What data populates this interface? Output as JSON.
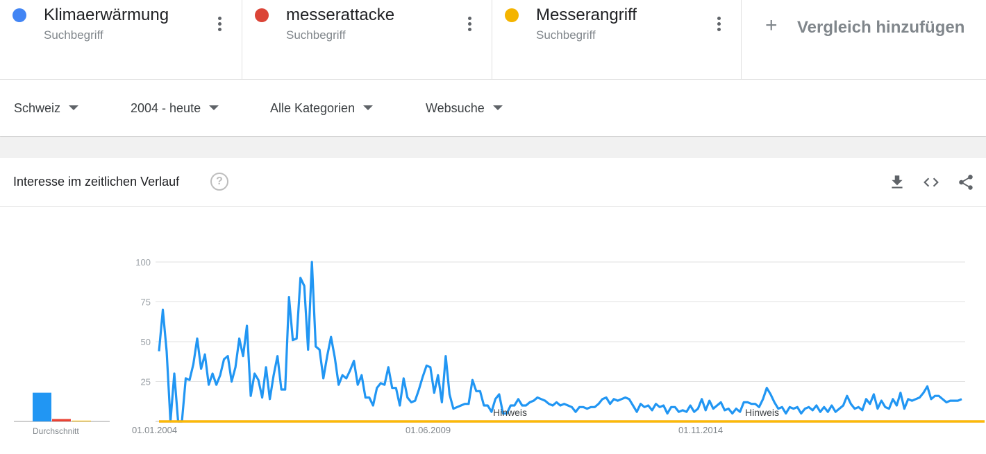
{
  "terms": [
    {
      "name": "Klimaerwärmung",
      "type": "Suchbegriff",
      "color": "#4285f4"
    },
    {
      "name": "messerattacke",
      "type": "Suchbegriff",
      "color": "#db4437"
    },
    {
      "name": "Messerangriff",
      "type": "Suchbegriff",
      "color": "#f4b400"
    }
  ],
  "add_compare": {
    "label": "Vergleich hinzufügen",
    "icon": "plus-icon"
  },
  "filters": {
    "region": "Schweiz",
    "timeframe": "2004 - heute",
    "category": "Alle Kategorien",
    "property": "Websuche"
  },
  "card": {
    "title": "Interesse im zeitlichen Verlauf",
    "icons": [
      "help-icon",
      "download-icon",
      "embed-icon",
      "share-icon"
    ]
  },
  "chart_data": {
    "type": "line",
    "ylim": [
      0,
      100
    ],
    "yticks": [
      "25",
      "50",
      "75",
      "100"
    ],
    "xtick_labels": [
      "01.01.2004",
      "01.06.2009",
      "01.11.2014"
    ],
    "notes": [
      "Hinweis",
      "Hinweis"
    ],
    "average_label": "Durchschnitt",
    "averages": [
      18,
      1.5,
      0.5
    ],
    "series": [
      {
        "name": "Klimaerwärmung",
        "color": "#2196f3",
        "values": [
          44,
          70,
          44,
          0,
          30,
          0,
          0,
          27,
          26,
          36,
          52,
          33,
          42,
          23,
          30,
          23,
          29,
          39,
          41,
          25,
          34,
          52,
          41,
          60,
          16,
          30,
          26,
          15,
          34,
          14,
          29,
          41,
          20,
          20,
          78,
          51,
          52,
          90,
          85,
          45,
          100,
          47,
          45,
          27,
          41,
          53,
          40,
          23,
          29,
          27,
          32,
          38,
          23,
          29,
          15,
          15,
          10,
          21,
          24,
          23,
          34,
          21,
          21,
          10,
          27,
          15,
          12,
          13,
          20,
          28,
          35,
          34,
          18,
          29,
          12,
          41,
          17,
          8,
          9,
          10,
          11,
          11,
          26,
          19,
          19,
          10,
          10,
          6,
          14,
          17,
          5,
          5,
          10,
          10,
          14,
          10,
          10,
          12,
          13,
          15,
          14,
          13,
          11,
          10,
          12,
          10,
          11,
          10,
          9,
          6,
          9,
          9,
          8,
          9,
          9,
          11,
          14,
          15,
          11,
          14,
          13,
          14,
          15,
          14,
          10,
          6,
          11,
          9,
          10,
          7,
          11,
          9,
          10,
          5,
          9,
          9,
          6,
          7,
          6,
          10,
          6,
          8,
          14,
          7,
          13,
          8,
          10,
          12,
          7,
          8,
          5,
          8,
          6,
          12,
          12,
          11,
          11,
          9,
          14,
          21,
          17,
          12,
          8,
          9,
          5,
          9,
          8,
          9,
          5,
          8,
          9,
          7,
          10,
          6,
          9,
          6,
          10,
          6,
          8,
          10,
          16,
          11,
          8,
          9,
          7,
          14,
          11,
          17,
          8,
          13,
          9,
          8,
          14,
          10,
          18,
          8,
          14,
          13,
          14,
          15,
          18,
          22,
          14,
          16,
          16,
          14,
          12,
          13,
          13,
          13,
          14
        ]
      },
      {
        "name": "messerattacke",
        "color": "#ea4335",
        "values": [
          0,
          0,
          0,
          0,
          0,
          0,
          0,
          0,
          0,
          0,
          0,
          0,
          0,
          0,
          0,
          0,
          0,
          0,
          0,
          0,
          0,
          0,
          0,
          0,
          0,
          0,
          0,
          0,
          0,
          0,
          0,
          0,
          0,
          0,
          0,
          0,
          0,
          0,
          0,
          0,
          0,
          0,
          0,
          0,
          0,
          0,
          0,
          0,
          0,
          0,
          0,
          0,
          0,
          0,
          0,
          0,
          0,
          0,
          0,
          0,
          0,
          0,
          0,
          0,
          0,
          0,
          0,
          0,
          0,
          0,
          0,
          0,
          0,
          0,
          0,
          0,
          0,
          0,
          0,
          0,
          0,
          0,
          0,
          0,
          0,
          0,
          0,
          0,
          0,
          0,
          0,
          0,
          0,
          0,
          0,
          0,
          0,
          0,
          0,
          0,
          0,
          0,
          0,
          0,
          0,
          0,
          0,
          0,
          0,
          0,
          0,
          0,
          0,
          0,
          0,
          0,
          0,
          0,
          0,
          0,
          0,
          0,
          0,
          0,
          0,
          0,
          0,
          0,
          0,
          0,
          0,
          0,
          0,
          0,
          0,
          0,
          0,
          0,
          0,
          0,
          0,
          0,
          0,
          0,
          0,
          0,
          0,
          0,
          0,
          0,
          0,
          0,
          0,
          0,
          0,
          0,
          0,
          0,
          0,
          0,
          0,
          0,
          0,
          0,
          0,
          0,
          0,
          0,
          0,
          0,
          0,
          0,
          0,
          0,
          0,
          0,
          0,
          0,
          0,
          0,
          0,
          0,
          0,
          0,
          0,
          0,
          0,
          0,
          0,
          0,
          0,
          0,
          0,
          0,
          0,
          0,
          0,
          0,
          0,
          0,
          0,
          0,
          0,
          0,
          0,
          0,
          0,
          0,
          0,
          0,
          0,
          0,
          0,
          0,
          0,
          0,
          0
        ]
      },
      {
        "name": "Messerangriff",
        "color": "#fbbc04",
        "values": [
          0,
          0,
          0,
          0,
          0,
          0,
          0,
          0,
          0,
          0,
          0,
          0,
          0,
          0,
          0,
          0,
          0,
          0,
          0,
          0,
          0,
          0,
          0,
          0,
          0,
          0,
          0,
          0,
          0,
          0,
          0,
          0,
          0,
          0,
          0,
          0,
          0,
          0,
          0,
          0,
          0,
          0,
          0,
          0,
          0,
          0,
          0,
          0,
          0,
          0,
          0,
          0,
          0,
          0,
          0,
          0,
          0,
          0,
          0,
          0,
          0,
          0,
          0,
          0,
          0,
          0,
          0,
          0,
          0,
          0,
          0,
          0,
          0,
          0,
          0,
          0,
          0,
          0,
          0,
          0,
          0,
          0,
          0,
          0,
          0,
          0,
          0,
          0,
          0,
          0,
          0,
          0,
          0,
          0,
          0,
          0,
          0,
          0,
          0,
          0,
          0,
          0,
          0,
          0,
          0,
          0,
          0,
          0,
          0,
          0,
          0,
          0,
          0,
          0,
          0,
          0,
          0,
          0,
          0,
          0,
          0,
          0,
          0,
          0,
          0,
          0,
          0,
          0,
          0,
          0,
          0,
          0,
          0,
          0,
          0,
          0,
          0,
          0,
          0,
          0,
          0,
          0,
          0,
          0,
          0,
          0,
          0,
          0,
          0,
          0,
          0,
          0,
          0,
          0,
          0,
          0,
          0,
          0,
          0,
          0,
          0,
          0,
          0,
          0,
          0,
          0,
          0,
          0,
          0,
          0,
          0,
          0,
          0,
          0,
          0,
          0,
          0,
          0,
          0,
          0,
          0,
          0,
          0,
          0,
          0,
          0,
          0,
          0,
          0,
          0,
          0,
          0,
          0,
          0,
          0,
          0,
          0,
          0,
          0,
          0,
          0,
          0,
          0,
          0,
          0,
          0,
          0,
          0,
          0,
          0,
          0,
          0,
          0,
          0,
          0,
          0,
          0
        ]
      }
    ]
  }
}
